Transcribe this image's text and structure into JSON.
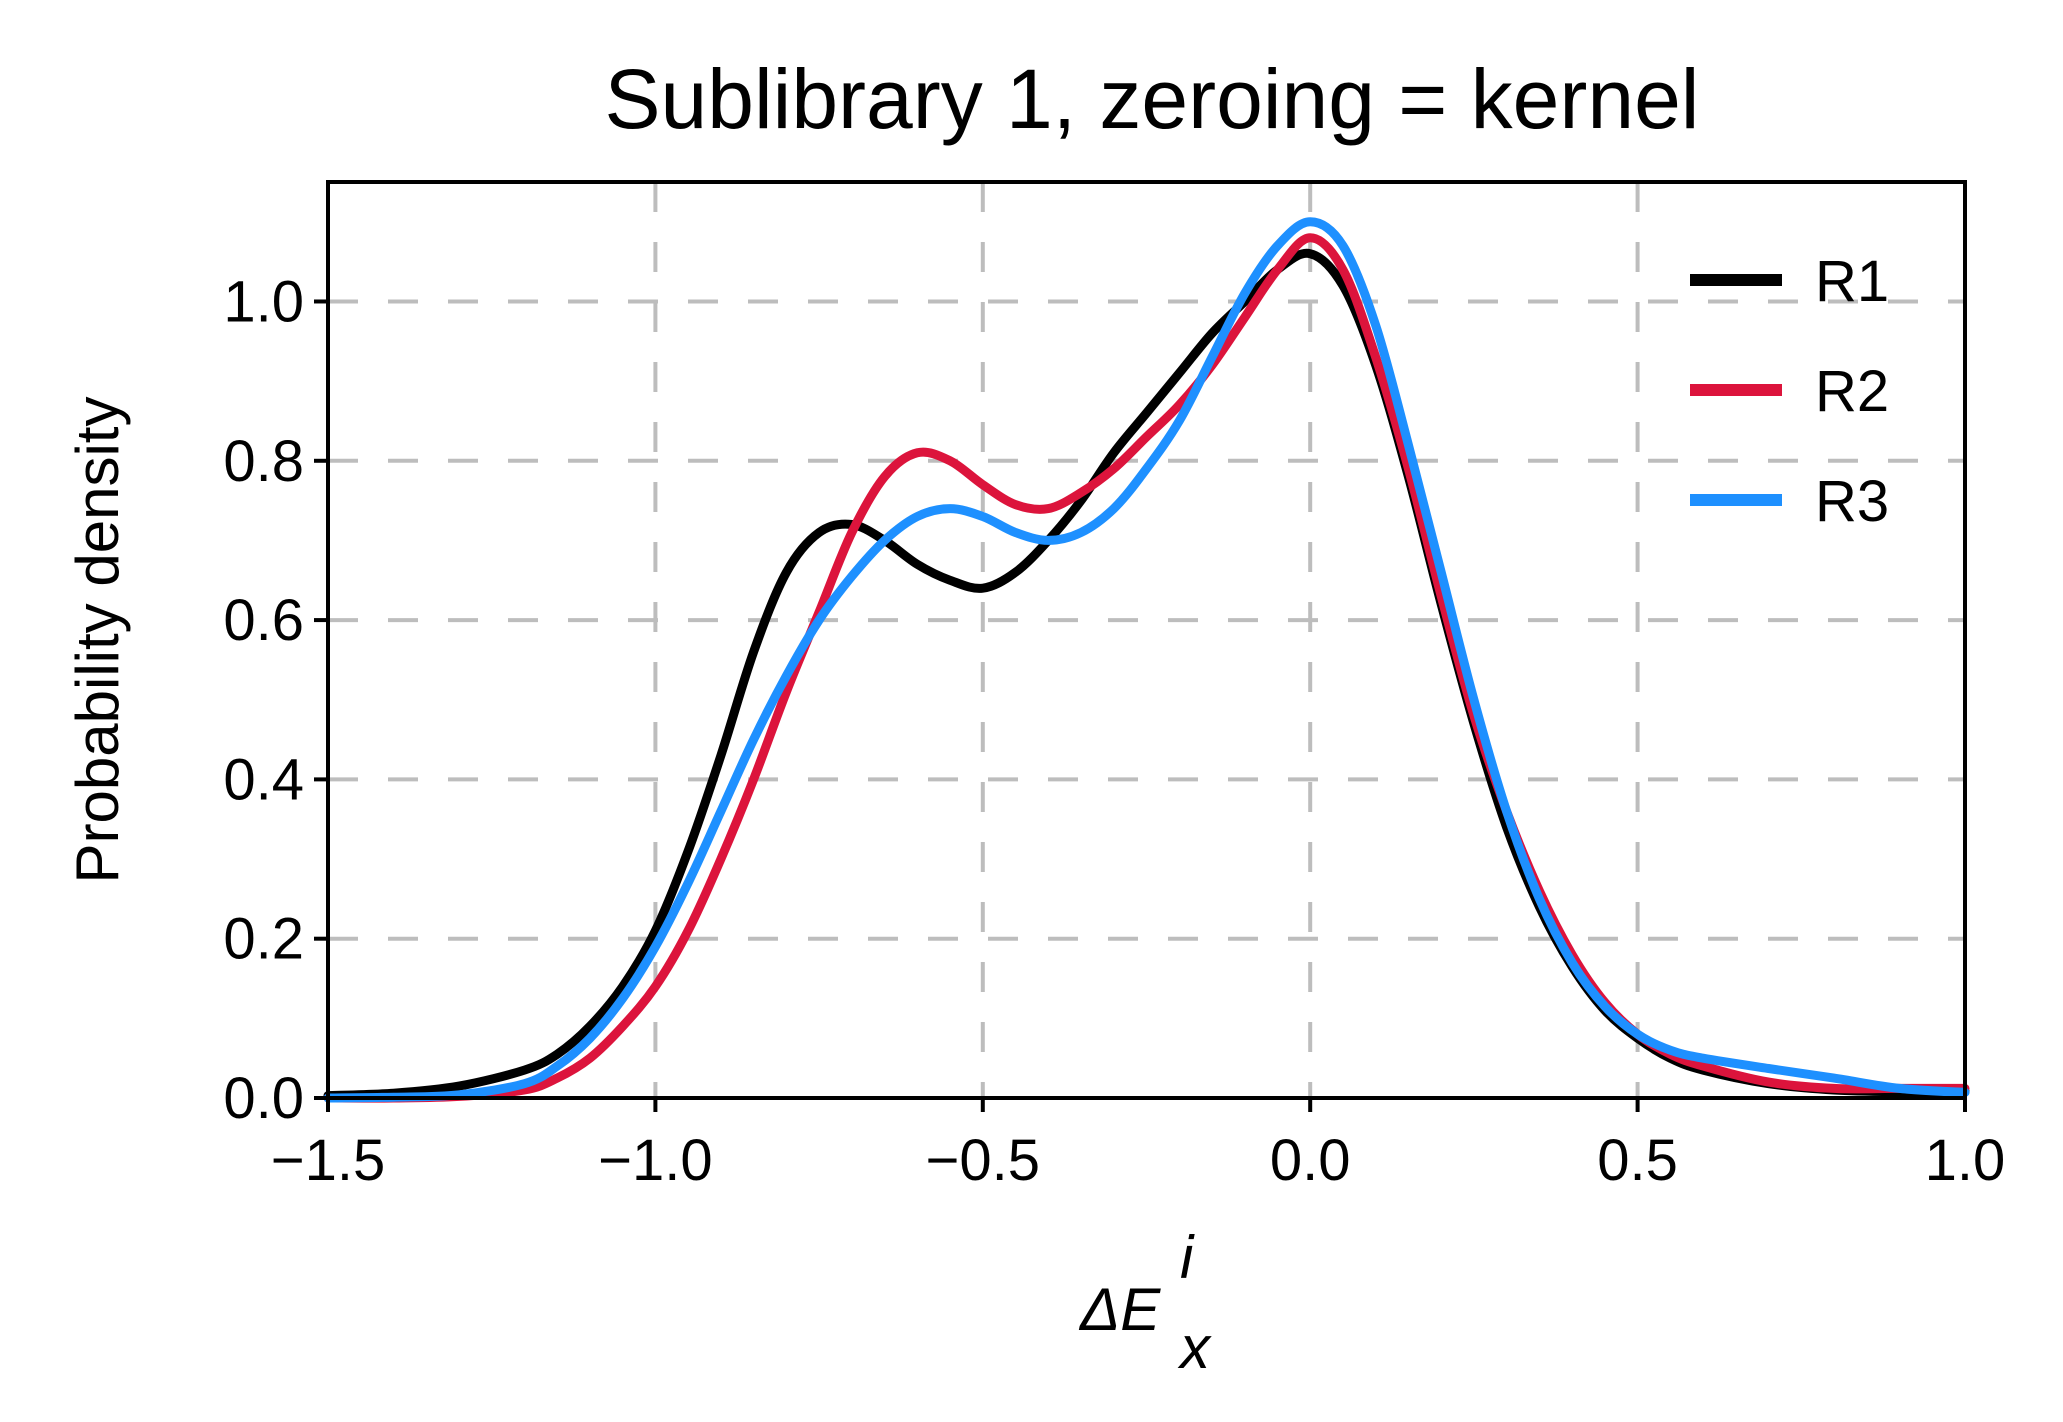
{
  "chart_data": {
    "type": "line",
    "title": "Sublibrary 1, zeroing = kernel",
    "xlabel": {
      "base": "ΔE",
      "superscript": "i",
      "subscript": "x"
    },
    "ylabel": "Probability density",
    "xlim": [
      -1.5,
      1.0
    ],
    "ylim": [
      0.0,
      1.15
    ],
    "xticks": [
      -1.5,
      -1.0,
      -0.5,
      0.0,
      0.5,
      1.0
    ],
    "xtick_labels": [
      "−1.5",
      "−1.0",
      "−0.5",
      "0.0",
      "0.5",
      "1.0"
    ],
    "yticks": [
      0.0,
      0.2,
      0.4,
      0.6,
      0.8,
      1.0
    ],
    "ytick_labels": [
      "0.0",
      "0.2",
      "0.4",
      "0.6",
      "0.8",
      "1.0"
    ],
    "grid": true,
    "legend_position": "top-right",
    "series": [
      {
        "name": "R1",
        "color": "#000000",
        "x": [
          -1.5,
          -1.4,
          -1.3,
          -1.2,
          -1.15,
          -1.1,
          -1.05,
          -1.0,
          -0.95,
          -0.9,
          -0.85,
          -0.8,
          -0.75,
          -0.7,
          -0.65,
          -0.6,
          -0.55,
          -0.5,
          -0.45,
          -0.4,
          -0.35,
          -0.3,
          -0.25,
          -0.2,
          -0.15,
          -0.1,
          -0.05,
          0.0,
          0.05,
          0.1,
          0.15,
          0.2,
          0.25,
          0.3,
          0.35,
          0.4,
          0.45,
          0.5,
          0.55,
          0.6,
          0.7,
          0.8,
          0.9,
          1.0
        ],
        "y": [
          0.003,
          0.006,
          0.015,
          0.035,
          0.055,
          0.09,
          0.14,
          0.21,
          0.31,
          0.43,
          0.56,
          0.66,
          0.71,
          0.72,
          0.7,
          0.67,
          0.65,
          0.64,
          0.66,
          0.7,
          0.75,
          0.81,
          0.86,
          0.91,
          0.96,
          1.0,
          1.04,
          1.06,
          1.02,
          0.92,
          0.78,
          0.62,
          0.47,
          0.34,
          0.24,
          0.165,
          0.11,
          0.075,
          0.05,
          0.035,
          0.018,
          0.01,
          0.008,
          0.008
        ]
      },
      {
        "name": "R2",
        "color": "#dc143c",
        "x": [
          -1.5,
          -1.4,
          -1.3,
          -1.2,
          -1.15,
          -1.1,
          -1.05,
          -1.0,
          -0.95,
          -0.9,
          -0.85,
          -0.8,
          -0.75,
          -0.7,
          -0.65,
          -0.6,
          -0.55,
          -0.5,
          -0.45,
          -0.4,
          -0.35,
          -0.3,
          -0.25,
          -0.2,
          -0.15,
          -0.1,
          -0.05,
          0.0,
          0.05,
          0.1,
          0.15,
          0.2,
          0.25,
          0.3,
          0.35,
          0.4,
          0.45,
          0.5,
          0.55,
          0.6,
          0.7,
          0.8,
          0.9,
          1.0
        ],
        "y": [
          0.0,
          0.0,
          0.002,
          0.01,
          0.025,
          0.05,
          0.09,
          0.14,
          0.21,
          0.3,
          0.4,
          0.51,
          0.61,
          0.71,
          0.78,
          0.81,
          0.8,
          0.77,
          0.745,
          0.74,
          0.76,
          0.79,
          0.83,
          0.87,
          0.92,
          0.98,
          1.04,
          1.08,
          1.04,
          0.93,
          0.79,
          0.63,
          0.48,
          0.36,
          0.26,
          0.18,
          0.12,
          0.08,
          0.055,
          0.04,
          0.02,
          0.012,
          0.012,
          0.012
        ]
      },
      {
        "name": "R3",
        "color": "#1e90ff",
        "x": [
          -1.5,
          -1.4,
          -1.3,
          -1.2,
          -1.15,
          -1.1,
          -1.05,
          -1.0,
          -0.95,
          -0.9,
          -0.85,
          -0.8,
          -0.75,
          -0.7,
          -0.65,
          -0.6,
          -0.55,
          -0.5,
          -0.45,
          -0.4,
          -0.35,
          -0.3,
          -0.25,
          -0.2,
          -0.15,
          -0.1,
          -0.05,
          0.0,
          0.05,
          0.1,
          0.15,
          0.2,
          0.25,
          0.3,
          0.35,
          0.4,
          0.45,
          0.5,
          0.55,
          0.6,
          0.7,
          0.8,
          0.9,
          1.0
        ],
        "y": [
          0.0,
          0.001,
          0.004,
          0.018,
          0.04,
          0.075,
          0.125,
          0.19,
          0.27,
          0.36,
          0.45,
          0.53,
          0.6,
          0.655,
          0.7,
          0.73,
          0.74,
          0.73,
          0.71,
          0.7,
          0.71,
          0.74,
          0.79,
          0.85,
          0.93,
          1.01,
          1.07,
          1.1,
          1.07,
          0.97,
          0.82,
          0.66,
          0.5,
          0.36,
          0.25,
          0.17,
          0.115,
          0.08,
          0.06,
          0.05,
          0.037,
          0.025,
          0.012,
          0.007
        ]
      }
    ]
  }
}
